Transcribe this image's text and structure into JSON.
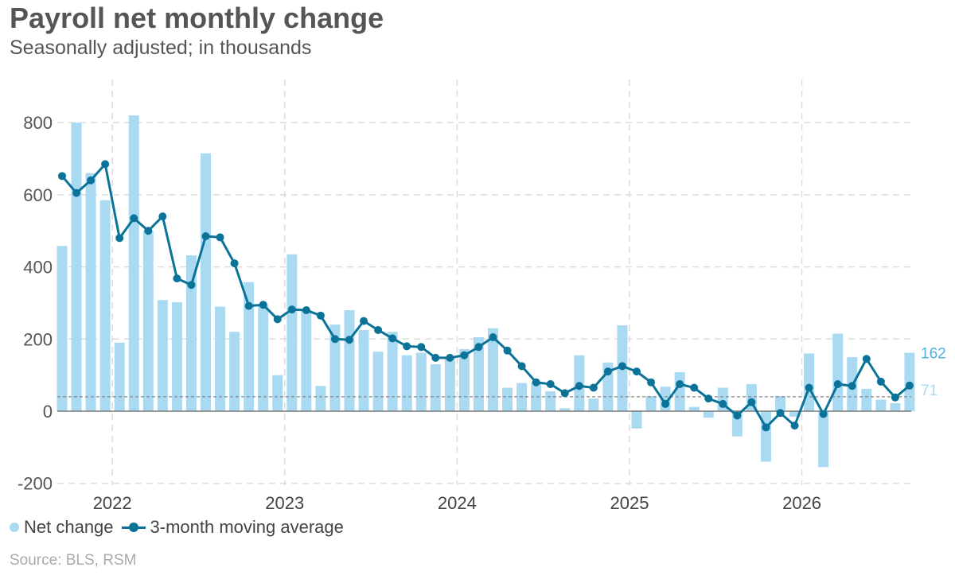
{
  "title": "Payroll net monthly change",
  "subtitle": "Seasonally adjusted; in thousands",
  "source": "Source: BLS, RSM",
  "colors": {
    "bar": "#a9daf1",
    "line": "#0c7398",
    "grid": "#dcdcdc",
    "axis": "#777777",
    "ref": "#888888",
    "bar_label": "#4fb3df"
  },
  "legend": {
    "bar_label": "Net change",
    "line_label": "3-month moving average"
  },
  "end_labels": {
    "bar_value": "162",
    "ref_value": "71"
  },
  "chart_data": {
    "type": "bar+line",
    "x_axis": {
      "labels": [
        "2022",
        "2023",
        "2024",
        "2025",
        "2026"
      ]
    },
    "y_axis": {
      "ticks": [
        "800",
        "600",
        "400",
        "200",
        "0",
        "-200"
      ],
      "range": [
        -200,
        800
      ]
    },
    "grid": true,
    "legend_position": "bottom-left",
    "reference_line": {
      "value": 40,
      "style": "dashed"
    },
    "series": [
      {
        "name": "Net change",
        "kind": "bar",
        "values": [
          458,
          800,
          660,
          585,
          190,
          820,
          500,
          308,
          302,
          432,
          715,
          290,
          220,
          358,
          295,
          100,
          435,
          280,
          70,
          240,
          280,
          225,
          165,
          220,
          155,
          162,
          130,
          150,
          172,
          205,
          230,
          65,
          78,
          80,
          55,
          8,
          155,
          35,
          135,
          238,
          -48,
          42,
          68,
          108,
          12,
          -18,
          65,
          -70,
          75,
          -140,
          42,
          -15,
          160,
          -155,
          215,
          150,
          62,
          32,
          22,
          162
        ]
      },
      {
        "name": "3-month moving average",
        "kind": "line",
        "values": [
          652,
          605,
          640,
          685,
          480,
          535,
          500,
          540,
          368,
          350,
          485,
          482,
          410,
          292,
          295,
          255,
          282,
          280,
          265,
          200,
          198,
          250,
          225,
          202,
          180,
          178,
          148,
          148,
          155,
          178,
          205,
          168,
          125,
          80,
          75,
          50,
          70,
          65,
          110,
          125,
          110,
          80,
          20,
          75,
          65,
          35,
          20,
          -12,
          25,
          -45,
          -5,
          -40,
          65,
          -8,
          75,
          70,
          145,
          82,
          38,
          71
        ]
      }
    ]
  }
}
